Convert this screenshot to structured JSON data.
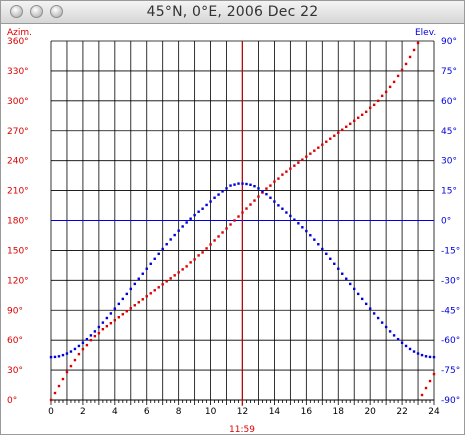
{
  "window": {
    "title": "45°N, 0°E, 2006 Dec 22",
    "buttons": [
      "close",
      "minimize",
      "zoom"
    ]
  },
  "chart_data": {
    "type": "scatter",
    "colors": {
      "azimuth": "#dd0000",
      "elevation": "#0000dd",
      "grid": "#000000",
      "noon": "#dd0000",
      "horizon": "#0000dd"
    },
    "left_axis_label": "Azim.",
    "right_axis_label": "Elev.",
    "x_ticks": [
      "0",
      "2",
      "4",
      "6",
      "8",
      "10",
      "12",
      "14",
      "16",
      "18",
      "20",
      "22",
      "24"
    ],
    "left_ticks": [
      "0°",
      "30°",
      "60°",
      "90°",
      "120°",
      "150°",
      "180°",
      "210°",
      "240°",
      "270°",
      "300°",
      "330°",
      "360°"
    ],
    "right_ticks": [
      "-90°",
      "-75°",
      "-60°",
      "-45°",
      "-30°",
      "-15°",
      "0°",
      "15°",
      "30°",
      "45°",
      "60°",
      "75°",
      "90°"
    ],
    "xlim": [
      0,
      24
    ],
    "ylim_left": [
      0,
      360
    ],
    "ylim_right": [
      -90,
      90
    ],
    "noon_label": "11:59",
    "noon_time": 11.98,
    "horizon_elevation": 0,
    "grid": true,
    "series": [
      {
        "key": "azimuth",
        "x": [
          0.0,
          0.25,
          0.5,
          0.75,
          1.0,
          1.25,
          1.5,
          1.75,
          2.0,
          2.25,
          2.5,
          2.75,
          3.0,
          3.25,
          3.5,
          3.75,
          4.0,
          4.25,
          4.5,
          4.75,
          5.0,
          5.25,
          5.5,
          5.75,
          6.0,
          6.25,
          6.5,
          6.75,
          7.0,
          7.25,
          7.5,
          7.75,
          8.0,
          8.25,
          8.5,
          8.75,
          9.0,
          9.25,
          9.5,
          9.75,
          10.0,
          10.25,
          10.5,
          10.75,
          11.0,
          11.25,
          11.5,
          11.75,
          12.0,
          12.25,
          12.5,
          12.75,
          13.0,
          13.25,
          13.5,
          13.75,
          14.0,
          14.25,
          14.5,
          14.75,
          15.0,
          15.25,
          15.5,
          15.75,
          16.0,
          16.25,
          16.5,
          16.75,
          17.0,
          17.25,
          17.5,
          17.75,
          18.0,
          18.25,
          18.5,
          18.75,
          19.0,
          19.25,
          19.5,
          19.75,
          20.0,
          20.25,
          20.5,
          20.75,
          21.0,
          21.25,
          21.5,
          21.75,
          22.0,
          22.25,
          22.5,
          22.75,
          23.0,
          23.25,
          23.5,
          23.75,
          24.0
        ],
        "values": [
          0,
          7,
          14,
          21,
          28,
          34,
          40,
          46,
          51,
          55,
          60,
          64,
          67,
          71,
          74,
          77,
          80,
          83,
          86,
          89,
          92,
          95,
          98,
          101,
          104,
          107,
          110,
          113,
          116,
          119,
          122,
          125,
          128,
          131,
          134,
          138,
          141,
          145,
          148,
          152,
          156,
          160,
          164,
          168,
          172,
          176,
          180,
          184,
          188,
          192,
          196,
          200,
          204,
          208,
          212,
          215,
          219,
          222,
          226,
          229,
          232,
          235,
          238,
          241,
          244,
          247,
          250,
          253,
          256,
          259,
          262,
          265,
          268,
          271,
          274,
          277,
          280,
          283,
          286,
          289,
          293,
          296,
          300,
          305,
          309,
          314,
          319,
          325,
          331,
          337,
          344,
          351,
          358,
          5,
          12,
          19,
          26
        ]
      },
      {
        "key": "elevation",
        "x": [
          0.0,
          0.25,
          0.5,
          0.75,
          1.0,
          1.25,
          1.5,
          1.75,
          2.0,
          2.25,
          2.5,
          2.75,
          3.0,
          3.25,
          3.5,
          3.75,
          4.0,
          4.25,
          4.5,
          4.75,
          5.0,
          5.25,
          5.5,
          5.75,
          6.0,
          6.25,
          6.5,
          6.75,
          7.0,
          7.25,
          7.5,
          7.75,
          8.0,
          8.25,
          8.5,
          8.75,
          9.0,
          9.25,
          9.5,
          9.75,
          10.0,
          10.25,
          10.5,
          10.75,
          11.0,
          11.25,
          11.5,
          11.75,
          12.0,
          12.25,
          12.5,
          12.75,
          13.0,
          13.25,
          13.5,
          13.75,
          14.0,
          14.25,
          14.5,
          14.75,
          15.0,
          15.25,
          15.5,
          15.75,
          16.0,
          16.25,
          16.5,
          16.75,
          17.0,
          17.25,
          17.5,
          17.75,
          18.0,
          18.25,
          18.5,
          18.75,
          19.0,
          19.25,
          19.5,
          19.75,
          20.0,
          20.25,
          20.5,
          20.75,
          21.0,
          21.25,
          21.5,
          21.75,
          22.0,
          22.25,
          22.5,
          22.75,
          23.0,
          23.25,
          23.5,
          23.75,
          24.0
        ],
        "values": [
          -68.5,
          -68.4,
          -68.1,
          -67.5,
          -66.7,
          -65.7,
          -64.4,
          -62.9,
          -61.3,
          -59.5,
          -57.6,
          -55.6,
          -53.4,
          -51.2,
          -48.9,
          -46.6,
          -44.2,
          -41.8,
          -39.3,
          -36.8,
          -34.3,
          -31.8,
          -29.2,
          -26.7,
          -24.2,
          -21.7,
          -19.2,
          -16.7,
          -14.3,
          -11.9,
          -9.5,
          -7.3,
          -5.1,
          -3.0,
          -1.0,
          0.9,
          2.7,
          4.4,
          5.9,
          7.8,
          9.5,
          11.4,
          13.0,
          14.6,
          16.1,
          17.5,
          18.0,
          18.5,
          18.5,
          18.3,
          17.9,
          17.2,
          16.1,
          14.6,
          13.2,
          11.4,
          9.5,
          7.6,
          5.9,
          4.0,
          2.3,
          0.4,
          -1.4,
          -3.4,
          -5.3,
          -7.4,
          -9.6,
          -11.9,
          -14.3,
          -16.7,
          -19.2,
          -21.7,
          -24.2,
          -26.7,
          -29.2,
          -31.8,
          -34.3,
          -36.8,
          -39.3,
          -41.8,
          -44.2,
          -46.6,
          -48.9,
          -51.2,
          -53.4,
          -55.6,
          -57.6,
          -59.5,
          -61.3,
          -62.9,
          -64.4,
          -65.7,
          -66.7,
          -67.5,
          -68.1,
          -68.4,
          -68.5
        ]
      }
    ]
  }
}
